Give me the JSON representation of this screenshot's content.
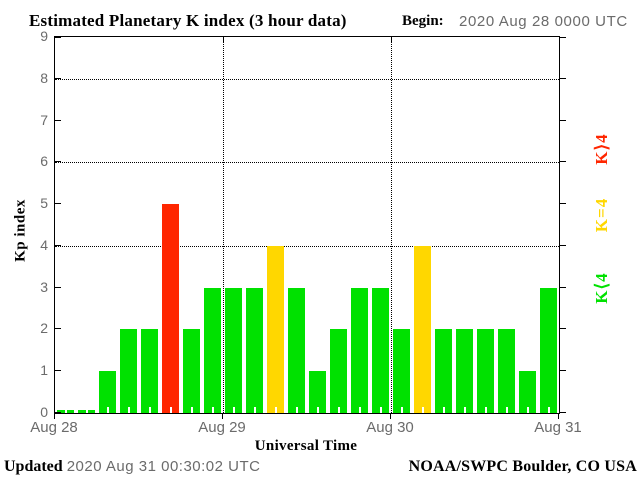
{
  "header": {
    "title": "Estimated Planetary K index (3 hour data)",
    "begin_label": "Begin:",
    "begin_value": "2020 Aug 28 0000 UTC"
  },
  "chart_data": {
    "type": "bar",
    "title": "Estimated Planetary K index (3 hour data)",
    "xlabel": "Universal Time",
    "ylabel": "Kp index",
    "ylim": [
      0,
      9
    ],
    "yticks": [
      0,
      1,
      2,
      3,
      4,
      5,
      6,
      7,
      8,
      9
    ],
    "gridlines_y": [
      4,
      6,
      8
    ],
    "grid": "dotted",
    "bin_hours": 3,
    "day_tick_labels": [
      "Aug 28",
      "Aug 29",
      "Aug 30",
      "Aug 31"
    ],
    "series": [
      {
        "name": "Kp",
        "values": [
          0,
          0,
          1,
          2,
          2,
          5,
          2,
          3,
          3,
          3,
          4,
          3,
          1,
          2,
          3,
          3,
          2,
          4,
          2,
          2,
          2,
          2,
          1,
          3
        ]
      }
    ],
    "color_rules": {
      "below_4": "#00E100",
      "equal_4": "#FFD700",
      "above_4": "#FF2600"
    },
    "legend_position": "right",
    "legend": [
      {
        "label": "K⟩4",
        "color": "#FF2600"
      },
      {
        "label": "K=4",
        "color": "#FFD700"
      },
      {
        "label": "K⟨4",
        "color": "#00E100"
      }
    ]
  },
  "footer": {
    "updated_label": "Updated",
    "updated_value": "2020 Aug 31 00:30:02 UTC",
    "credit": "NOAA/SWPC Boulder, CO USA"
  },
  "colors": {
    "axis": "#000000",
    "tick_text": "#6b6b6b",
    "background": "#ffffff"
  }
}
